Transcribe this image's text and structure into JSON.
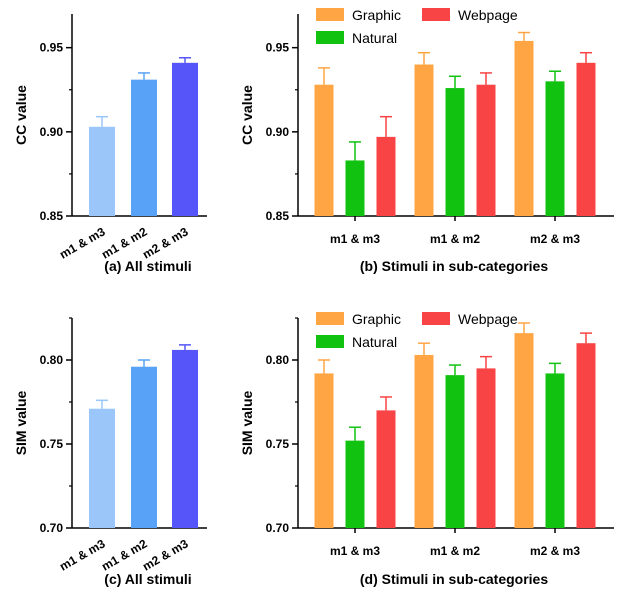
{
  "chart_data": [
    {
      "id": "a",
      "type": "bar",
      "caption": "(a) All stimuli",
      "xlabel": "",
      "ylabel": "CC value",
      "ylim": [
        0.85,
        0.97
      ],
      "yticks": [
        "0.85",
        "0.90",
        "0.95"
      ],
      "categories": [
        "m1 & m3",
        "m1 & m2",
        "m2 & m3"
      ],
      "values": [
        0.903,
        0.931,
        0.941
      ],
      "errors": [
        0.006,
        0.004,
        0.003
      ],
      "colors": [
        "#9ac6fa",
        "#58a2f7",
        "#5555fa"
      ]
    },
    {
      "id": "b",
      "type": "bar",
      "caption": "(b) Stimuli in sub-categories",
      "xlabel": "",
      "ylabel": "CC value",
      "ylim": [
        0.85,
        0.97
      ],
      "yticks": [
        "0.85",
        "0.90",
        "0.95"
      ],
      "categories": [
        "m1 & m3",
        "m1 & m2",
        "m2 & m3"
      ],
      "series": [
        {
          "name": "Graphic",
          "color": "#ffa544",
          "values": [
            0.928,
            0.94,
            0.954
          ],
          "errors": [
            0.01,
            0.007,
            0.005
          ]
        },
        {
          "name": "Natural",
          "color": "#11c211",
          "values": [
            0.883,
            0.926,
            0.93
          ],
          "errors": [
            0.011,
            0.007,
            0.006
          ]
        },
        {
          "name": "Webpage",
          "color": "#f84444",
          "values": [
            0.897,
            0.928,
            0.941
          ],
          "errors": [
            0.012,
            0.007,
            0.006
          ]
        }
      ],
      "legend": "top"
    },
    {
      "id": "c",
      "type": "bar",
      "caption": "(c) All stimuli",
      "xlabel": "",
      "ylabel": "SIM value",
      "ylim": [
        0.7,
        0.825
      ],
      "yticks": [
        "0.70",
        "0.75",
        "0.80"
      ],
      "categories": [
        "m1 & m3",
        "m1 & m2",
        "m2 & m3"
      ],
      "values": [
        0.771,
        0.796,
        0.806
      ],
      "errors": [
        0.005,
        0.004,
        0.003
      ],
      "colors": [
        "#9ac6fa",
        "#58a2f7",
        "#5555fa"
      ]
    },
    {
      "id": "d",
      "type": "bar",
      "caption": "(d) Stimuli in sub-categories",
      "xlabel": "",
      "ylabel": "SIM value",
      "ylim": [
        0.7,
        0.825
      ],
      "yticks": [
        "0.70",
        "0.75",
        "0.80"
      ],
      "categories": [
        "m1 & m3",
        "m1 & m2",
        "m2 & m3"
      ],
      "series": [
        {
          "name": "Graphic",
          "color": "#ffa544",
          "values": [
            0.792,
            0.803,
            0.816
          ],
          "errors": [
            0.008,
            0.007,
            0.006
          ]
        },
        {
          "name": "Natural",
          "color": "#11c211",
          "values": [
            0.752,
            0.791,
            0.792
          ],
          "errors": [
            0.008,
            0.006,
            0.006
          ]
        },
        {
          "name": "Webpage",
          "color": "#f84444",
          "values": [
            0.77,
            0.795,
            0.81
          ],
          "errors": [
            0.008,
            0.007,
            0.006
          ]
        }
      ],
      "legend": "top"
    }
  ]
}
